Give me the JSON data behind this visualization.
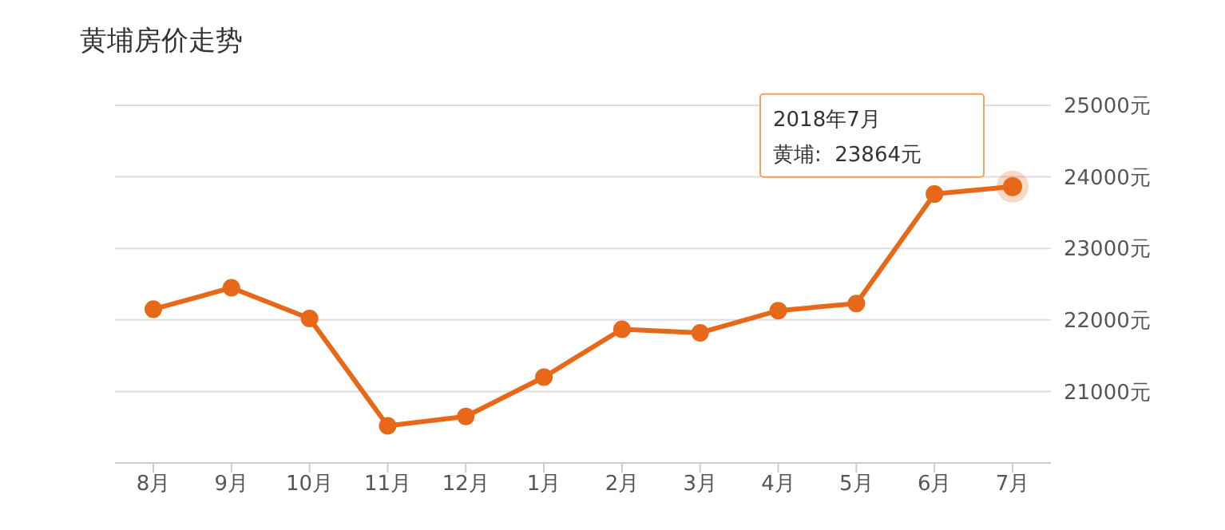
{
  "chart_data": {
    "type": "line",
    "title": "黄埔房价走势",
    "categories": [
      "8月",
      "9月",
      "10月",
      "11月",
      "12月",
      "1月",
      "2月",
      "3月",
      "4月",
      "5月",
      "6月",
      "7月"
    ],
    "series": [
      {
        "color": "#e8681a",
        "values": [
          22150,
          22450,
          22020,
          20520,
          20650,
          21200,
          21870,
          21820,
          22130,
          22230,
          23760,
          23864
        ]
      }
    ],
    "ylim": [
      20000,
      25000
    ],
    "yticks": [
      {
        "value": 20000,
        "label": null
      },
      {
        "value": 21000,
        "label": "21000元"
      },
      {
        "value": 22000,
        "label": "22000元"
      },
      {
        "value": 23000,
        "label": "23000元"
      },
      {
        "value": 24000,
        "label": "24000元"
      },
      {
        "value": 25000,
        "label": "25000元"
      }
    ],
    "grid": "y",
    "marker": "circle",
    "line_style": "solid",
    "legend": false,
    "annotations": [
      "2018年7月",
      "黄埔:  23864元"
    ]
  }
}
